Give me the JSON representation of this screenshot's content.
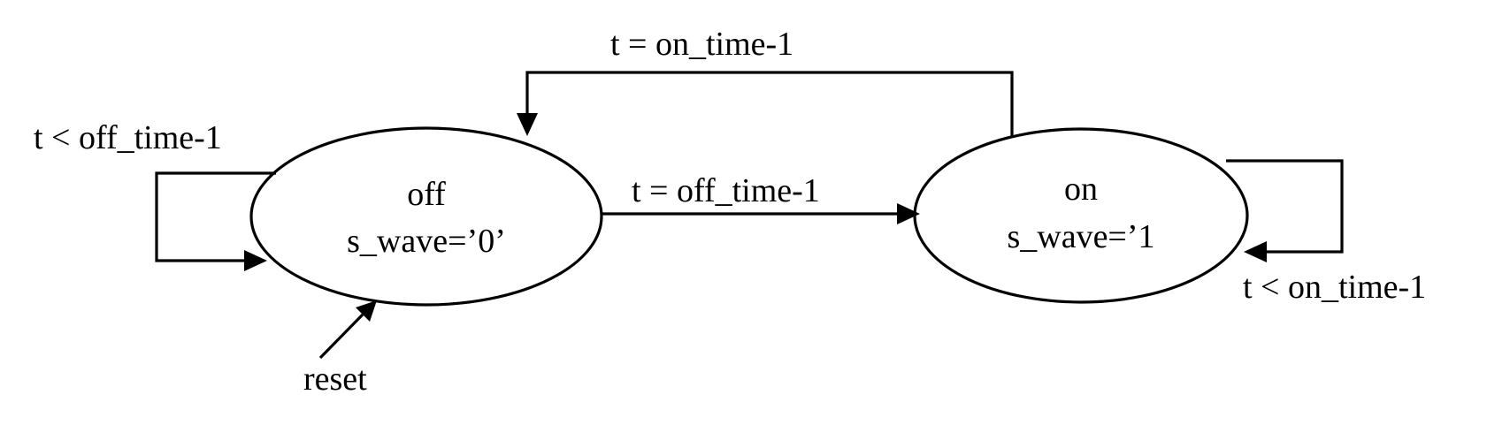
{
  "diagram": {
    "states": [
      {
        "id": "off",
        "name": "off",
        "output": "s_wave=’0’"
      },
      {
        "id": "on",
        "name": "on",
        "output": "s_wave=’1"
      }
    ],
    "transitions": [
      {
        "from": "off",
        "to": "off",
        "label": "t < off_time-1"
      },
      {
        "from": "off",
        "to": "on",
        "label": "t = off_time-1"
      },
      {
        "from": "on",
        "to": "off",
        "label": "t = on_time-1"
      },
      {
        "from": "on",
        "to": "on",
        "label": "t < on_time-1"
      }
    ],
    "initial": {
      "to": "off",
      "label": "reset"
    }
  }
}
